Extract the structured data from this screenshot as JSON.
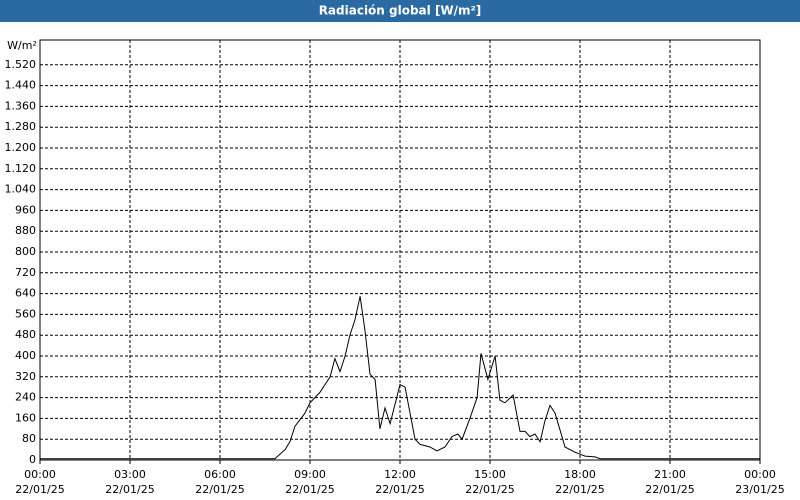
{
  "chart_data": {
    "type": "line",
    "title": "Radiación global [W/m²]",
    "y_label": "W/m²",
    "x": [
      0,
      7.83,
      8.17,
      8.33,
      8.5,
      8.83,
      9,
      9.33,
      9.67,
      9.83,
      10,
      10.17,
      10.33,
      10.5,
      10.67,
      10.83,
      11,
      11.17,
      11.33,
      11.5,
      11.67,
      12,
      12.17,
      12.5,
      12.67,
      13,
      13.23,
      13.5,
      13.73,
      13.93,
      14.07,
      14.33,
      14.57,
      14.7,
      14.93,
      15.17,
      15.33,
      15.5,
      15.77,
      16,
      16.17,
      16.33,
      16.5,
      16.67,
      16.83,
      17,
      17.17,
      17.5,
      17.83,
      18.17,
      18.5,
      18.67,
      24
    ],
    "series": [
      {
        "name": "Radiación global",
        "color": "#000000",
        "values": [
          5,
          5,
          40,
          70,
          130,
          180,
          220,
          260,
          320,
          390,
          340,
          400,
          480,
          540,
          630,
          500,
          330,
          310,
          120,
          200,
          140,
          290,
          280,
          80,
          60,
          50,
          35,
          50,
          90,
          100,
          80,
          160,
          240,
          410,
          310,
          400,
          230,
          220,
          250,
          110,
          110,
          90,
          100,
          70,
          150,
          210,
          180,
          50,
          30,
          15,
          12,
          5,
          5
        ]
      }
    ],
    "xlim": [
      0,
      24
    ],
    "xticks": [
      {
        "value": 0,
        "label": "00:00",
        "date": "22/01/25"
      },
      {
        "value": 3,
        "label": "03:00",
        "date": "22/01/25"
      },
      {
        "value": 6,
        "label": "06:00",
        "date": "22/01/25"
      },
      {
        "value": 9,
        "label": "09:00",
        "date": "22/01/25"
      },
      {
        "value": 12,
        "label": "12:00",
        "date": "22/01/25"
      },
      {
        "value": 15,
        "label": "15:00",
        "date": "22/01/25"
      },
      {
        "value": 18,
        "label": "18:00",
        "date": "22/01/25"
      },
      {
        "value": 21,
        "label": "21:00",
        "date": "22/01/25"
      },
      {
        "value": 24,
        "label": "00:00",
        "date": "23/01/25"
      }
    ],
    "ylim": [
      0,
      1600
    ],
    "yticks": [
      0,
      80,
      160,
      240,
      320,
      400,
      480,
      560,
      640,
      720,
      800,
      880,
      960,
      {
        "value": 1040,
        "label": "1.040"
      },
      {
        "value": 1120,
        "label": "1.120"
      },
      {
        "value": 1200,
        "label": "1.200"
      },
      {
        "value": 1280,
        "label": "1.280"
      },
      {
        "value": 1360,
        "label": "1.360"
      },
      {
        "value": 1440,
        "label": "1.440"
      },
      {
        "value": 1520,
        "label": "1.520"
      }
    ],
    "grid": true
  }
}
